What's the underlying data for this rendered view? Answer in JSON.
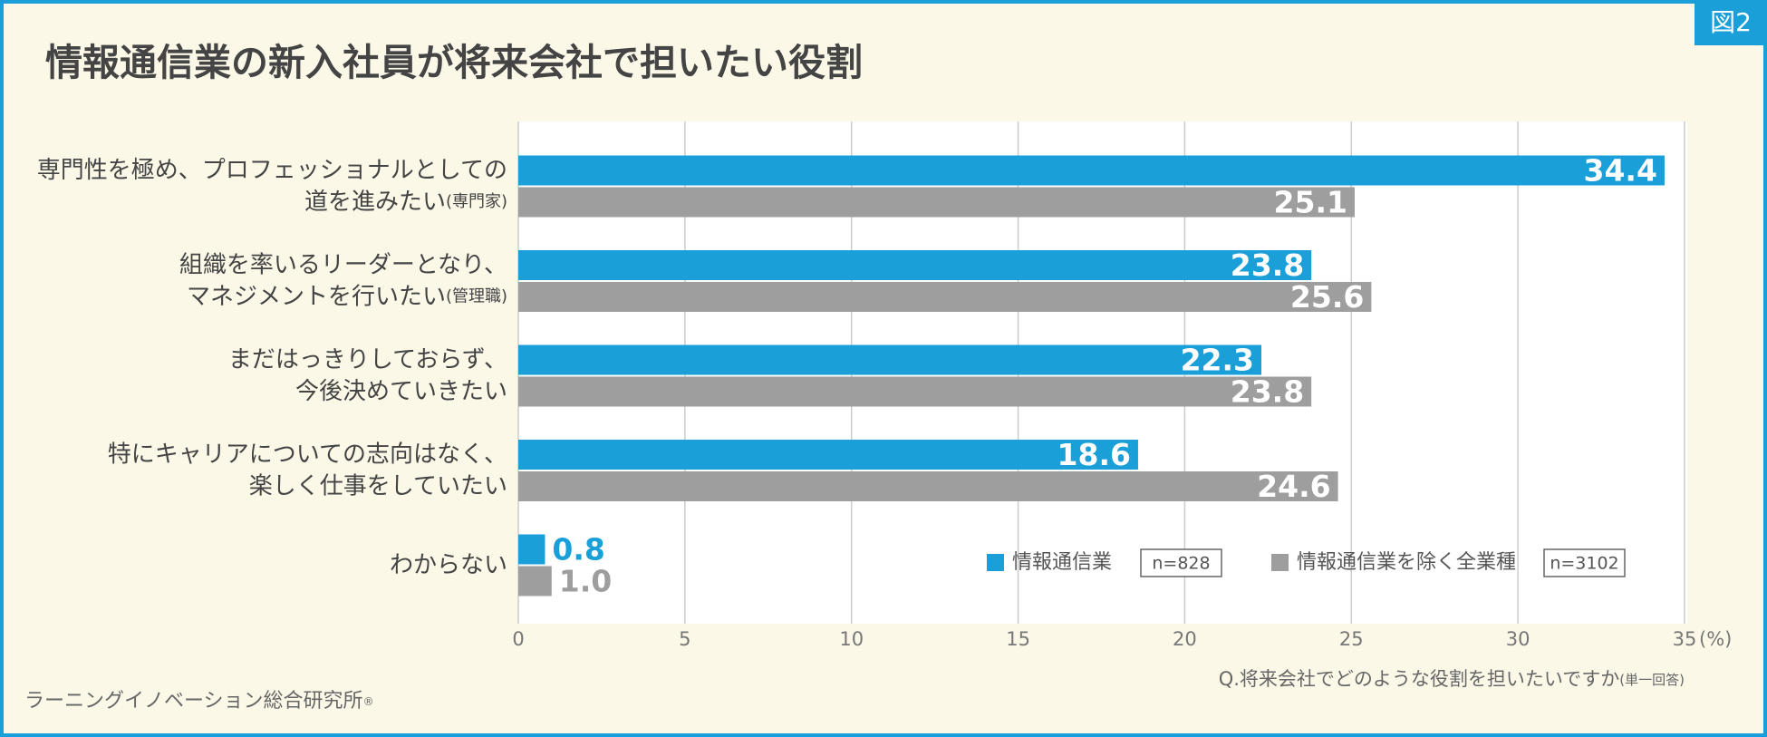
{
  "chart_data": {
    "type": "bar",
    "orientation": "horizontal",
    "title": "情報通信業の新入社員が将来会社で担いたい役割",
    "badge": "図2",
    "categories": [
      [
        "専門性を極め、プロフェッショナルとしての",
        "道を進みたい"
      ],
      [
        "組織を率いるリーダーとなり、",
        "マネジメントを行いたい"
      ],
      [
        "まだはっきりしておらず、",
        "今後決めていきたい"
      ],
      [
        "特にキャリアについての志向はなく、",
        "楽しく仕事をしていたい"
      ],
      [
        "わからない"
      ]
    ],
    "category_notes": [
      "(専門家)",
      "(管理職)",
      null,
      null,
      null
    ],
    "series": [
      {
        "name": "情報通信業",
        "n": "n=828",
        "color": "#1a9fd8",
        "values": [
          34.4,
          23.8,
          22.3,
          18.6,
          0.8
        ],
        "value_labels": [
          "34.4",
          "23.8",
          "22.3",
          "18.6",
          "0.8"
        ]
      },
      {
        "name": "情報通信業を除く全業種",
        "n": "n=3102",
        "color": "#9e9e9e",
        "values": [
          25.1,
          25.6,
          23.8,
          24.6,
          1.0
        ],
        "value_labels": [
          "25.1",
          "25.6",
          "23.8",
          "24.6",
          "1.0"
        ]
      }
    ],
    "xlim": [
      0,
      35
    ],
    "xticks": [
      0,
      5,
      10,
      15,
      20,
      25,
      30,
      35
    ],
    "x_unit": "(%)",
    "grid": true,
    "question": "Q.将来会社でどのような役割を担いたいですか",
    "question_note": "(単一回答)",
    "footer": "ラーニングイノベーション総合研究所",
    "footer_mark": "®"
  }
}
